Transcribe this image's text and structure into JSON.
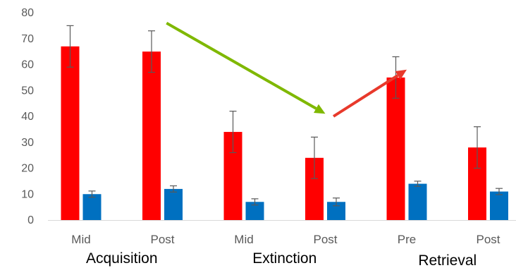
{
  "chart_data": {
    "type": "bar",
    "categories": [
      "Mid",
      "Post",
      "Mid",
      "Post",
      "Pre",
      "Post"
    ],
    "groups": [
      {
        "label": "Acquisition",
        "categories": [
          0,
          1
        ]
      },
      {
        "label": "Extinction",
        "categories": [
          2,
          3
        ]
      },
      {
        "label": "Retrieval",
        "categories": [
          4,
          5
        ]
      }
    ],
    "series": [
      {
        "color": "#ff0000",
        "values": [
          67,
          65,
          34,
          24,
          55,
          28
        ],
        "errors": [
          8,
          8,
          8,
          8,
          8,
          8
        ]
      },
      {
        "color": "#0070c0",
        "values": [
          10,
          12,
          7,
          7,
          14,
          11
        ],
        "errors": [
          1.2,
          1.2,
          1.2,
          1.5,
          1.0,
          1.2
        ]
      }
    ],
    "ylim": [
      0,
      80
    ],
    "yticks": [
      0,
      10,
      20,
      30,
      40,
      50,
      60,
      70,
      80
    ],
    "gridlines": false,
    "xlabel": "",
    "ylabel": "",
    "title": "",
    "annotations": [
      {
        "type": "arrow",
        "color": "#7fb800",
        "from": {
          "category": 1.05,
          "value": 76
        },
        "to": {
          "category": 3.0,
          "value": 41
        }
      },
      {
        "type": "arrow",
        "color": "#e8392b",
        "from": {
          "category": 3.1,
          "value": 40
        },
        "to": {
          "category": 4.0,
          "value": 58
        }
      }
    ]
  }
}
